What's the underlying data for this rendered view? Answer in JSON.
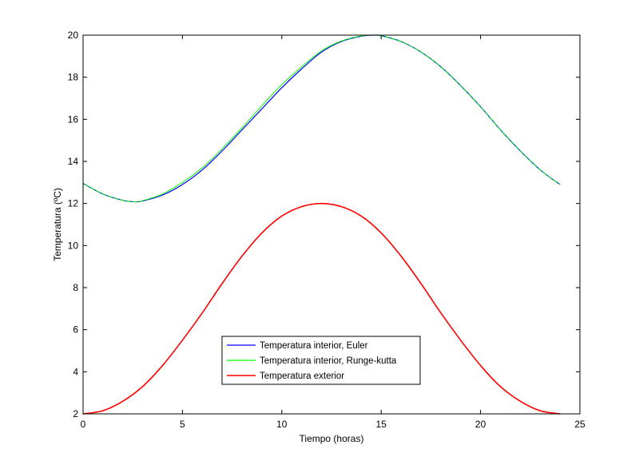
{
  "chart_data": {
    "type": "line",
    "title": "",
    "xlabel": "Tiempo (horas)",
    "ylabel": "Temperatura (ºC)",
    "xlim": [
      0,
      25
    ],
    "ylim": [
      2,
      20
    ],
    "xticks": [
      0,
      5,
      10,
      15,
      20,
      25
    ],
    "yticks": [
      2,
      4,
      6,
      8,
      10,
      12,
      14,
      16,
      18,
      20
    ],
    "grid": false,
    "legend_position": "lower-center",
    "series": [
      {
        "name": "Temperatura interior, Euler",
        "color": "#0000ff",
        "x": [
          0,
          1,
          2,
          2.6,
          3,
          4,
          5,
          6,
          7,
          8,
          9,
          10,
          11,
          12,
          13,
          14,
          14.6,
          15,
          16,
          17,
          18,
          19,
          20,
          21,
          22,
          23,
          24
        ],
        "y": [
          12.95,
          12.45,
          12.15,
          12.08,
          12.12,
          12.4,
          12.9,
          13.6,
          14.5,
          15.5,
          16.5,
          17.5,
          18.4,
          19.2,
          19.7,
          19.95,
          20.0,
          19.97,
          19.7,
          19.2,
          18.5,
          17.6,
          16.6,
          15.5,
          14.5,
          13.6,
          12.9
        ]
      },
      {
        "name": "Temperatura interior, Runge-kutta",
        "color": "#00ff00",
        "x": [
          0,
          1,
          2,
          2.6,
          3,
          4,
          5,
          6,
          7,
          8,
          9,
          10,
          11,
          12,
          13,
          14,
          14.6,
          15,
          16,
          17,
          18,
          19,
          20,
          21,
          22,
          23,
          24
        ],
        "y": [
          12.95,
          12.45,
          12.15,
          12.08,
          12.13,
          12.45,
          13.0,
          13.7,
          14.6,
          15.6,
          16.65,
          17.65,
          18.5,
          19.25,
          19.72,
          19.96,
          20.0,
          19.97,
          19.7,
          19.2,
          18.5,
          17.6,
          16.6,
          15.5,
          14.5,
          13.6,
          12.9
        ]
      },
      {
        "name": "Temperatura exterior",
        "color": "#ff0000",
        "x": [
          0,
          1,
          2,
          3,
          4,
          5,
          6,
          7,
          8,
          9,
          10,
          11,
          12,
          13,
          14,
          15,
          16,
          17,
          18,
          19,
          20,
          21,
          22,
          23,
          24
        ],
        "y": [
          2.0,
          2.15,
          2.6,
          3.3,
          4.3,
          5.5,
          6.8,
          8.2,
          9.5,
          10.6,
          11.4,
          11.85,
          12.0,
          11.85,
          11.4,
          10.6,
          9.5,
          8.2,
          6.8,
          5.5,
          4.3,
          3.3,
          2.6,
          2.15,
          2.0
        ]
      }
    ]
  }
}
